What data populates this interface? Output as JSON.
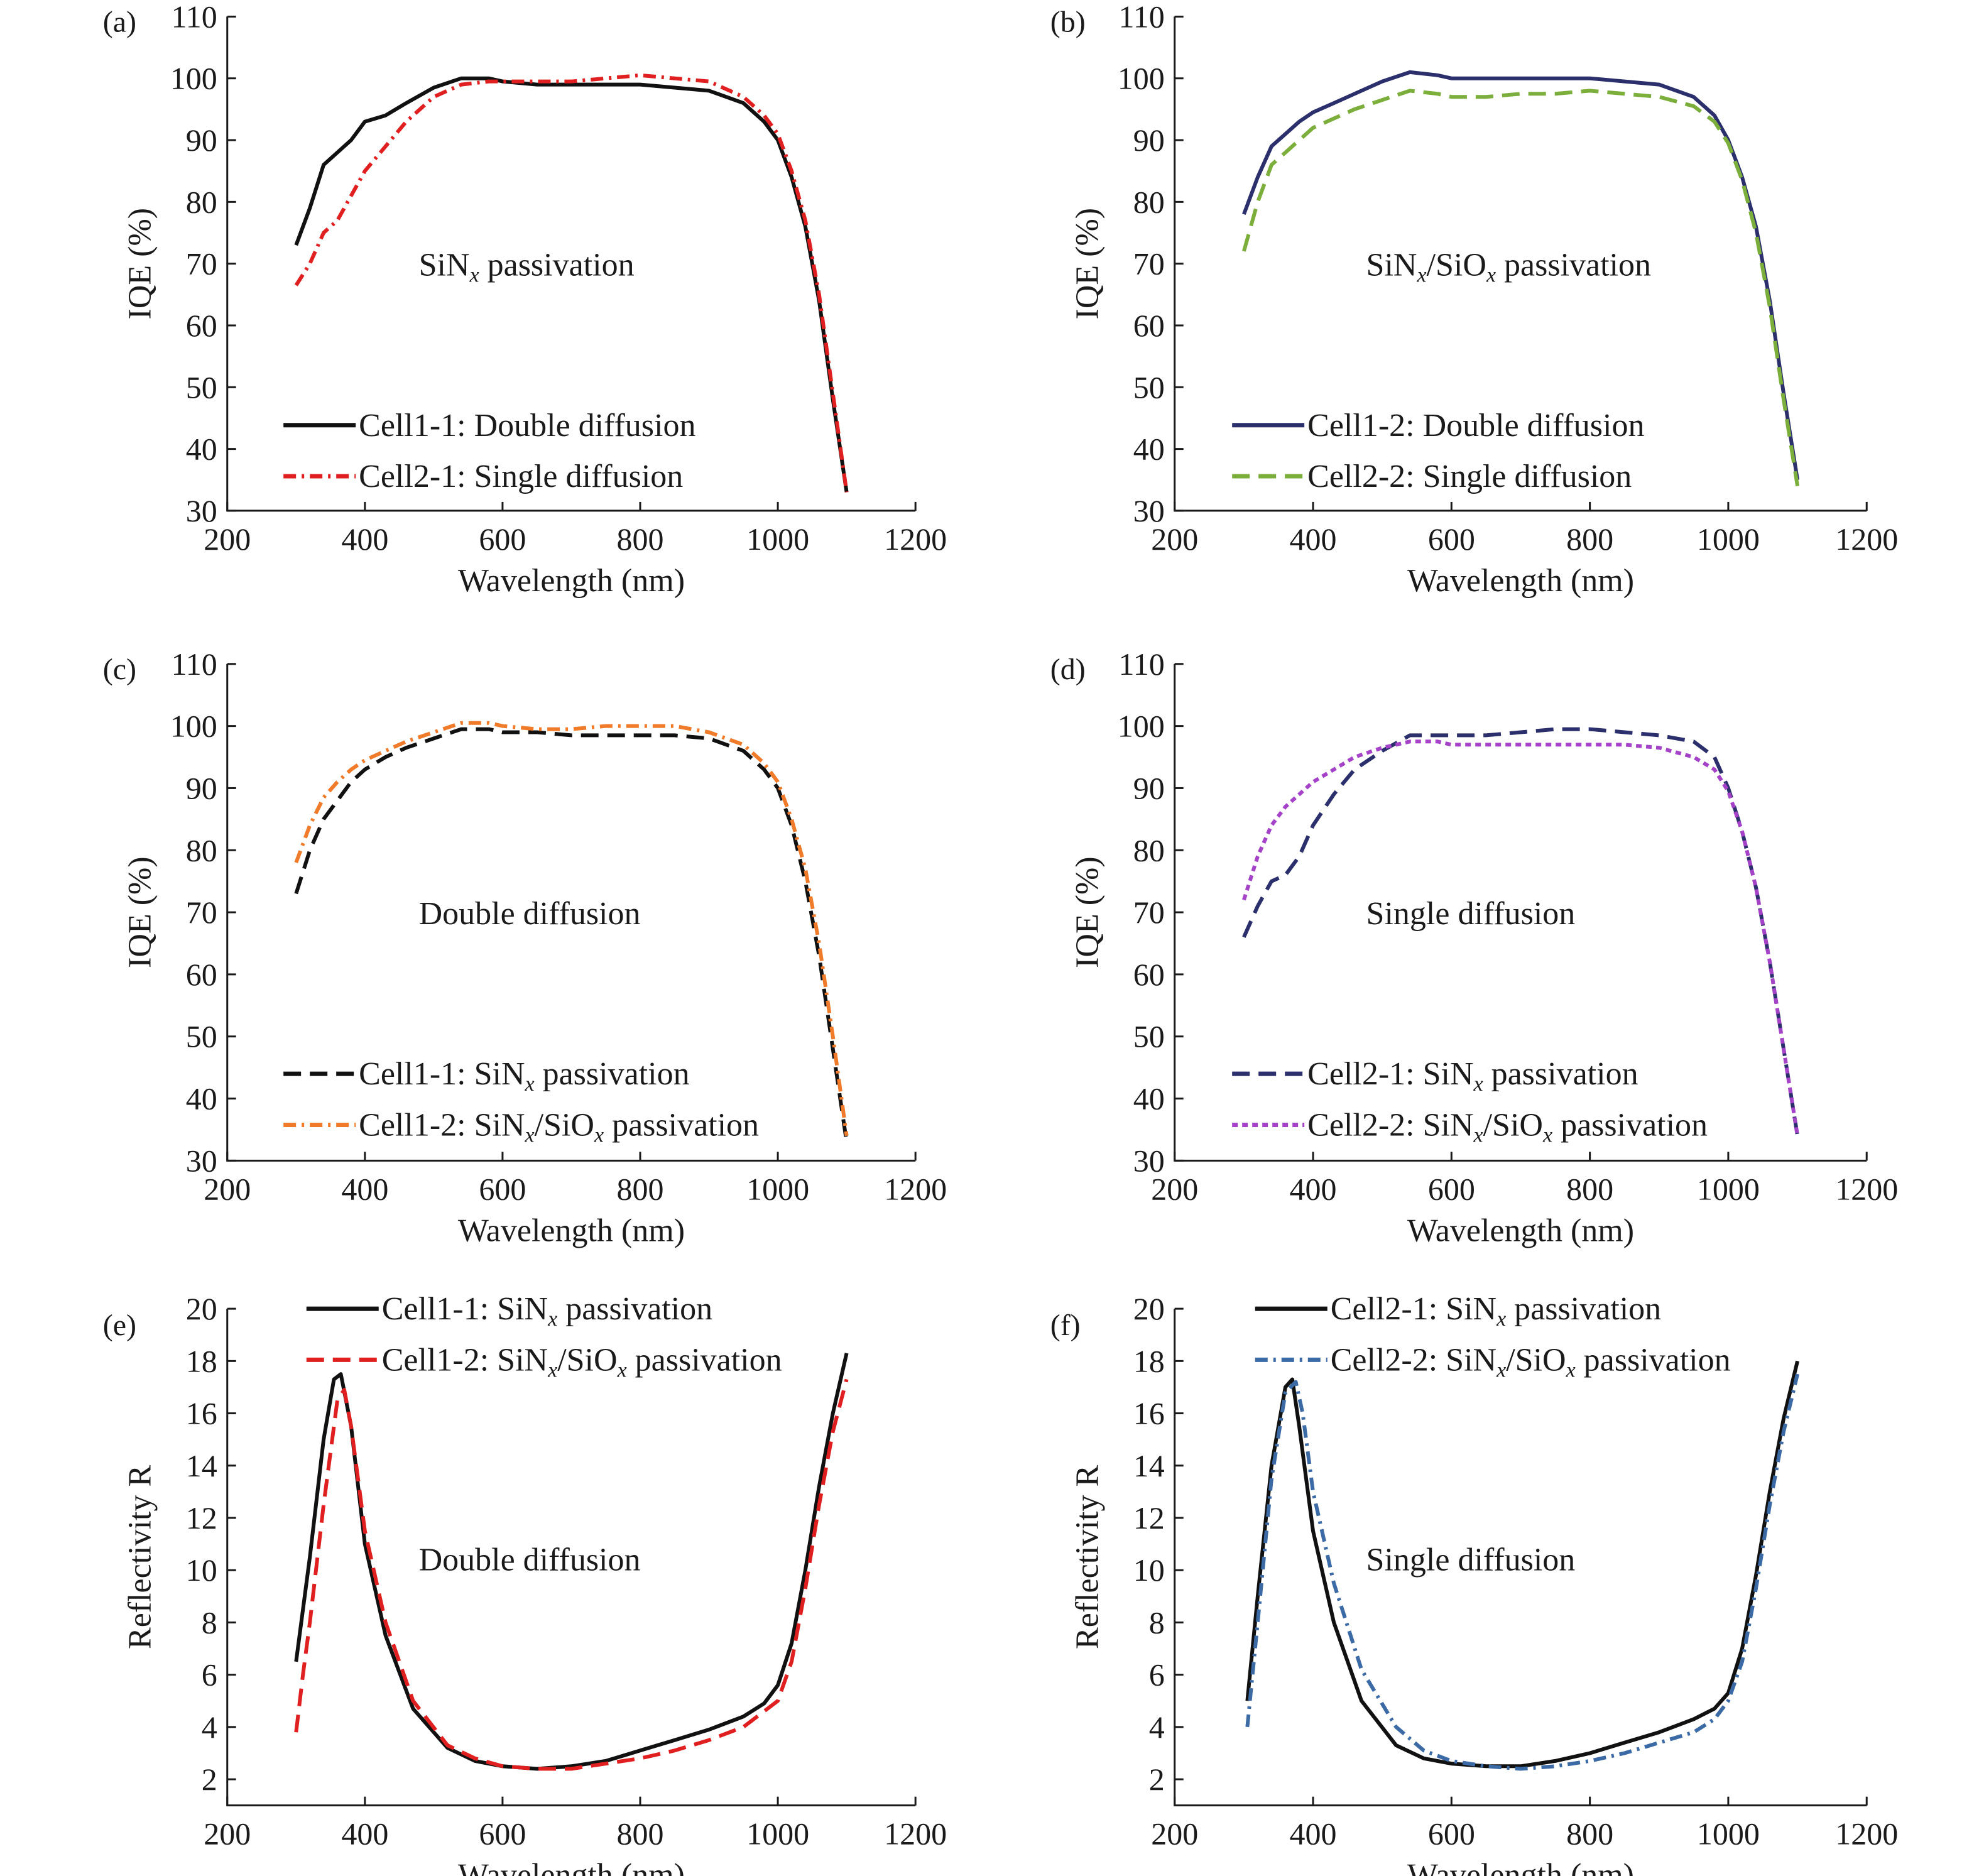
{
  "chart_data": [
    {
      "panel": "(a)",
      "type": "line",
      "annotation": "SiN|x| passivation",
      "xlabel": "Wavelength (nm)",
      "ylabel": "IQE (%)",
      "xlim": [
        200,
        1200
      ],
      "ylim": [
        30,
        110
      ],
      "xticks": [
        200,
        400,
        600,
        800,
        1000,
        1200
      ],
      "yticks": [
        30,
        40,
        50,
        60,
        70,
        80,
        90,
        100,
        110
      ],
      "legend_position": "lower-left",
      "grid": false,
      "series": [
        {
          "name": "Cell1-1: Double diffusion",
          "color": "#111111",
          "style": "solid",
          "x": [
            300,
            320,
            340,
            360,
            380,
            400,
            430,
            460,
            500,
            540,
            580,
            600,
            650,
            700,
            750,
            800,
            850,
            900,
            950,
            980,
            1000,
            1020,
            1040,
            1060,
            1080,
            1100
          ],
          "y": [
            73,
            79,
            86,
            88,
            90,
            93,
            94,
            96,
            98.5,
            100,
            100,
            99.5,
            99,
            99,
            99,
            99,
            98.5,
            98,
            96,
            93,
            90,
            84,
            76,
            64,
            48,
            33
          ]
        },
        {
          "name": "Cell2-1: Single diffusion",
          "color": "#e02020",
          "style": "dashdot",
          "x": [
            300,
            320,
            340,
            360,
            380,
            400,
            430,
            460,
            500,
            540,
            580,
            600,
            650,
            700,
            750,
            800,
            850,
            900,
            950,
            980,
            1000,
            1020,
            1040,
            1060,
            1080,
            1100
          ],
          "y": [
            66.5,
            70,
            75,
            77,
            81,
            85,
            89,
            93,
            97,
            99,
            99.5,
            99.5,
            99.5,
            99.5,
            100,
            100.5,
            100,
            99.5,
            97,
            94,
            91,
            85,
            77,
            65,
            49,
            33
          ]
        }
      ]
    },
    {
      "panel": "(b)",
      "type": "line",
      "annotation": "SiN|x|/SiO|x| passivation",
      "xlabel": "Wavelength (nm)",
      "ylabel": "IQE (%)",
      "xlim": [
        200,
        1200
      ],
      "ylim": [
        30,
        110
      ],
      "xticks": [
        200,
        400,
        600,
        800,
        1000,
        1200
      ],
      "yticks": [
        30,
        40,
        50,
        60,
        70,
        80,
        90,
        100,
        110
      ],
      "legend_position": "lower-left",
      "grid": false,
      "series": [
        {
          "name": "Cell1-2: Double diffusion",
          "color": "#2b2f6b",
          "style": "solid",
          "x": [
            300,
            320,
            340,
            360,
            380,
            400,
            430,
            460,
            500,
            540,
            580,
            600,
            650,
            700,
            750,
            800,
            850,
            900,
            950,
            980,
            1000,
            1020,
            1040,
            1060,
            1080,
            1100
          ],
          "y": [
            78,
            84,
            89,
            91,
            93,
            94.5,
            96,
            97.5,
            99.5,
            101,
            100.5,
            100,
            100,
            100,
            100,
            100,
            99.5,
            99,
            97,
            94,
            90,
            84,
            76,
            64,
            49,
            35
          ]
        },
        {
          "name": "Cell2-2: Single diffusion",
          "color": "#7cae3c",
          "style": "dashed",
          "x": [
            300,
            320,
            340,
            360,
            380,
            400,
            430,
            460,
            500,
            540,
            580,
            600,
            650,
            700,
            750,
            800,
            850,
            900,
            950,
            980,
            1000,
            1020,
            1040,
            1060,
            1080,
            1100
          ],
          "y": [
            72,
            80,
            86,
            88,
            90,
            92,
            93.5,
            95,
            96.5,
            98,
            97.5,
            97,
            97,
            97.5,
            97.5,
            98,
            97.5,
            97,
            95.5,
            93,
            89.5,
            83.5,
            75,
            63,
            48,
            34
          ]
        }
      ]
    },
    {
      "panel": "(c)",
      "type": "line",
      "annotation": "Double diffusion",
      "xlabel": "Wavelength (nm)",
      "ylabel": "IQE (%)",
      "xlim": [
        200,
        1200
      ],
      "ylim": [
        30,
        110
      ],
      "xticks": [
        200,
        400,
        600,
        800,
        1000,
        1200
      ],
      "yticks": [
        30,
        40,
        50,
        60,
        70,
        80,
        90,
        100,
        110
      ],
      "legend_position": "lower-left",
      "grid": false,
      "series": [
        {
          "name": "Cell1-1: SiN|x| passivation",
          "color": "#111111",
          "style": "dashed",
          "x": [
            300,
            320,
            340,
            360,
            380,
            400,
            430,
            460,
            500,
            540,
            580,
            600,
            650,
            700,
            750,
            800,
            850,
            900,
            950,
            980,
            1000,
            1020,
            1040,
            1060,
            1080,
            1100
          ],
          "y": [
            73,
            80,
            85,
            88,
            91,
            93,
            95,
            96.5,
            98,
            99.5,
            99.5,
            99,
            99,
            98.5,
            98.5,
            98.5,
            98.5,
            98,
            96,
            93,
            90,
            84,
            75,
            63,
            48,
            33
          ]
        },
        {
          "name": "Cell1-2: SiN|x|/SiO|x| passivation",
          "color": "#f07b2a",
          "style": "dashdot",
          "x": [
            300,
            320,
            340,
            360,
            380,
            400,
            430,
            460,
            500,
            540,
            580,
            600,
            650,
            700,
            750,
            800,
            850,
            900,
            950,
            980,
            1000,
            1020,
            1040,
            1060,
            1080,
            1100
          ],
          "y": [
            78,
            84,
            88.5,
            91,
            93,
            94.5,
            96,
            97.5,
            99,
            100.5,
            100.5,
            100,
            99.5,
            99.5,
            100,
            100,
            100,
            99,
            97,
            94,
            91,
            85,
            77,
            65,
            50,
            34
          ]
        }
      ]
    },
    {
      "panel": "(d)",
      "type": "line",
      "annotation": "Single diffusion",
      "xlabel": "Wavelength (nm)",
      "ylabel": "IQE (%)",
      "xlim": [
        200,
        1200
      ],
      "ylim": [
        30,
        110
      ],
      "xticks": [
        200,
        400,
        600,
        800,
        1000,
        1200
      ],
      "yticks": [
        30,
        40,
        50,
        60,
        70,
        80,
        90,
        100,
        110
      ],
      "legend_position": "lower-left",
      "grid": false,
      "series": [
        {
          "name": "Cell2-1: SiN|x| passivation",
          "color": "#2b2f6b",
          "style": "dashed",
          "x": [
            300,
            320,
            340,
            360,
            380,
            400,
            430,
            460,
            500,
            540,
            580,
            600,
            650,
            700,
            750,
            800,
            850,
            900,
            950,
            980,
            1000,
            1020,
            1040,
            1060,
            1080,
            1100
          ],
          "y": [
            66,
            71,
            75,
            76,
            79,
            84,
            89,
            93,
            96,
            98.5,
            98.5,
            98.5,
            98.5,
            99,
            99.5,
            99.5,
            99,
            98.5,
            97.5,
            95,
            90,
            83,
            74,
            62,
            48,
            34
          ]
        },
        {
          "name": "Cell2-2: SiN|x|/SiO|x| passivation",
          "color": "#a543c8",
          "style": "dotted",
          "x": [
            300,
            320,
            340,
            360,
            380,
            400,
            430,
            460,
            500,
            540,
            580,
            600,
            650,
            700,
            750,
            800,
            850,
            900,
            950,
            980,
            1000,
            1020,
            1040,
            1060,
            1080,
            1100
          ],
          "y": [
            72,
            79,
            84,
            87,
            89,
            91,
            93,
            95,
            96.5,
            97.5,
            97.5,
            97,
            97,
            97,
            97,
            97,
            97,
            96.5,
            95,
            93,
            89.5,
            83,
            74,
            62,
            48,
            34
          ]
        }
      ]
    },
    {
      "panel": "(e)",
      "type": "line",
      "annotation": "Double diffusion",
      "xlabel": "Wavelength (nm)",
      "ylabel": "Reflectivity R",
      "xlim": [
        200,
        1200
      ],
      "ylim": [
        1,
        20
      ],
      "xticks": [
        200,
        400,
        600,
        800,
        1000,
        1200
      ],
      "yticks": [
        2,
        4,
        6,
        8,
        10,
        12,
        14,
        16,
        18,
        20
      ],
      "legend_position": "top-left",
      "grid": false,
      "series": [
        {
          "name": "Cell1-1: SiN|x| passivation",
          "color": "#111111",
          "style": "solid",
          "x": [
            300,
            320,
            340,
            355,
            365,
            380,
            400,
            430,
            470,
            520,
            560,
            600,
            650,
            700,
            750,
            800,
            850,
            900,
            950,
            980,
            1000,
            1020,
            1040,
            1060,
            1080,
            1100
          ],
          "y": [
            6.5,
            10.5,
            15.0,
            17.3,
            17.5,
            15.5,
            11.0,
            7.5,
            4.7,
            3.2,
            2.7,
            2.5,
            2.4,
            2.5,
            2.7,
            3.1,
            3.5,
            3.9,
            4.4,
            4.9,
            5.6,
            7.2,
            10.0,
            13.2,
            16.0,
            18.3
          ]
        },
        {
          "name": "Cell1-2: SiN|x|/SiO|x| passivation",
          "color": "#e02020",
          "style": "dashed",
          "x": [
            300,
            310,
            320,
            340,
            360,
            370,
            380,
            400,
            430,
            470,
            520,
            560,
            600,
            650,
            700,
            750,
            800,
            850,
            900,
            950,
            1000,
            1020,
            1040,
            1060,
            1080,
            1100
          ],
          "y": [
            3.8,
            6.0,
            8.0,
            12.5,
            16.5,
            16.9,
            15.5,
            11.5,
            8.0,
            5.0,
            3.3,
            2.8,
            2.5,
            2.4,
            2.4,
            2.6,
            2.8,
            3.1,
            3.5,
            4.0,
            5.0,
            6.5,
            9.3,
            12.5,
            15.3,
            17.3
          ]
        }
      ]
    },
    {
      "panel": "(f)",
      "type": "line",
      "annotation": "Single diffusion",
      "xlabel": "Wavelength (nm)",
      "ylabel": "Reflectivity R",
      "xlim": [
        200,
        1200
      ],
      "ylim": [
        1,
        20
      ],
      "xticks": [
        200,
        400,
        600,
        800,
        1000,
        1200
      ],
      "yticks": [
        2,
        4,
        6,
        8,
        10,
        12,
        14,
        16,
        18,
        20
      ],
      "legend_position": "top-left",
      "grid": false,
      "series": [
        {
          "name": "Cell2-1: SiN|x| passivation",
          "color": "#111111",
          "style": "solid",
          "x": [
            305,
            320,
            340,
            360,
            370,
            380,
            400,
            430,
            470,
            520,
            560,
            600,
            650,
            700,
            750,
            800,
            850,
            900,
            950,
            980,
            1000,
            1020,
            1040,
            1060,
            1080,
            1100
          ],
          "y": [
            5.0,
            9.0,
            14.0,
            17.0,
            17.3,
            15.5,
            11.5,
            8.0,
            5.0,
            3.3,
            2.8,
            2.6,
            2.5,
            2.5,
            2.7,
            3.0,
            3.4,
            3.8,
            4.3,
            4.7,
            5.3,
            7.0,
            9.8,
            13.0,
            15.8,
            18.0
          ]
        },
        {
          "name": "Cell2-2: SiN|x|/SiO|x| passivation",
          "color": "#3b6aa5",
          "style": "dashdot",
          "x": [
            305,
            320,
            340,
            360,
            375,
            385,
            400,
            430,
            470,
            520,
            560,
            600,
            650,
            700,
            750,
            800,
            850,
            900,
            950,
            980,
            1000,
            1020,
            1040,
            1060,
            1080,
            1100
          ],
          "y": [
            4.0,
            8.0,
            13.5,
            16.8,
            17.2,
            16.0,
            13.0,
            9.5,
            6.2,
            4.0,
            3.1,
            2.7,
            2.5,
            2.4,
            2.5,
            2.7,
            3.0,
            3.4,
            3.8,
            4.3,
            5.0,
            6.5,
            9.3,
            12.5,
            15.3,
            17.5
          ]
        }
      ]
    }
  ]
}
